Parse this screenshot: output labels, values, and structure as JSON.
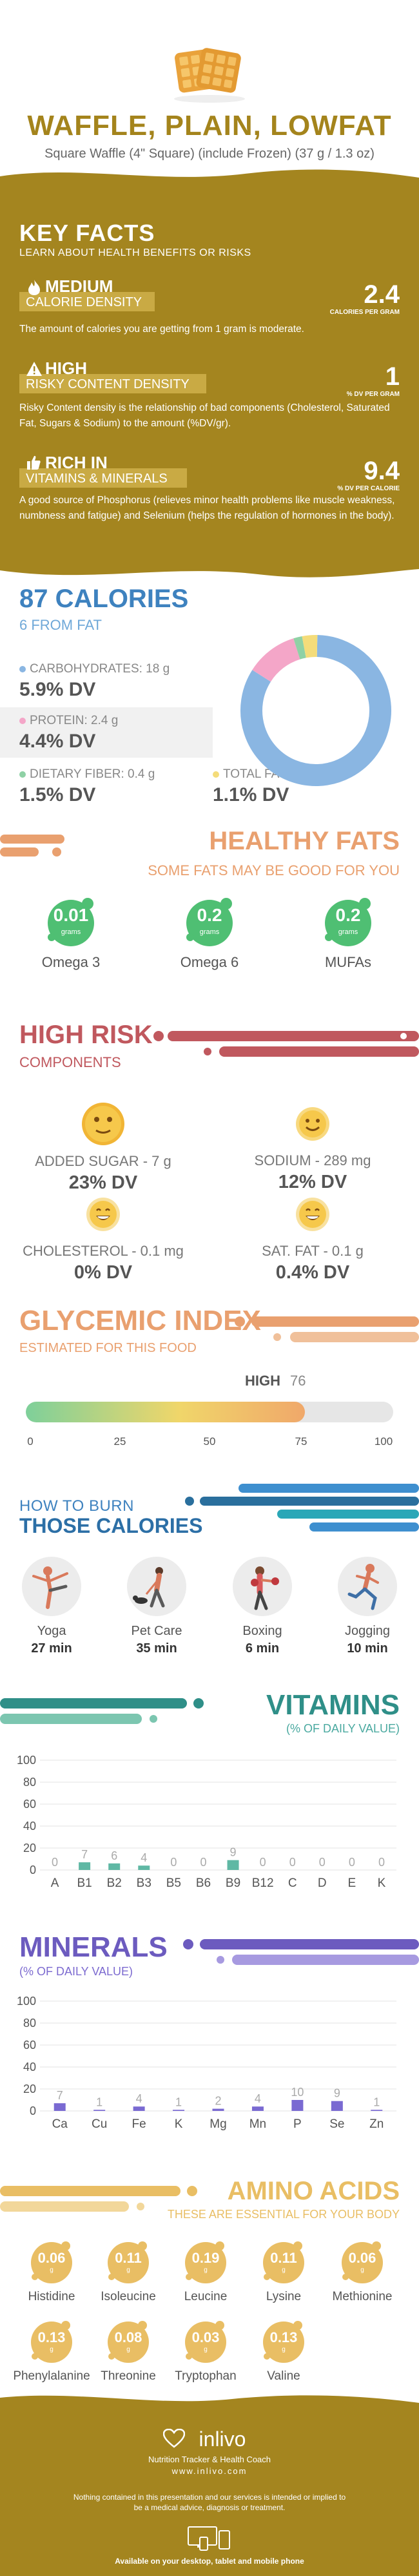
{
  "header": {
    "title": "WAFFLE, PLAIN, LOWFAT",
    "subtitle": "Square Waffle (4\" Square) (include Frozen) (37 g / 1.3 oz)",
    "image_icon": "waffle-image"
  },
  "key_facts": {
    "heading": "KEY FACTS",
    "subheading": "LEARN ABOUT HEALTH BENEFITS OR RISKS",
    "items": [
      {
        "level": "MEDIUM",
        "label": "CALORIE DENSITY",
        "value": "2.4",
        "unit": "CALORIES PER GRAM",
        "description": "The amount of calories you are getting from 1 gram is moderate.",
        "icon": "flame-icon"
      },
      {
        "level": "HIGH",
        "label": "RISKY CONTENT DENSITY",
        "value": "1",
        "unit": "% DV PER GRAM",
        "description": "Risky Content density is the relationship of bad components (Cholesterol, Saturated Fat, Sugars & Sodium) to the amount (%DV/gr).",
        "icon": "warning-icon"
      },
      {
        "level": "RICH  IN",
        "label": "VITAMINS & MINERALS",
        "value": "9.4",
        "unit": "% DV PER CALORIE",
        "description": "A good source of Phosphorus (relieves minor health problems like muscle weakness, numbness and fatigue) and Selenium (helps the regulation of hormones in the body).",
        "icon": "thumbs-up-icon"
      }
    ]
  },
  "calories": {
    "title": "87 CALORIES",
    "from_fat": "6 FROM FAT",
    "cells": [
      {
        "label": "CARBOHYDRATES: 18 g",
        "dv": "5.9% DV",
        "color": "#8ab6e2"
      },
      {
        "label": "PROTEIN: 2.4 g",
        "dv": "4.4% DV",
        "color": "#f4a6c8"
      },
      {
        "label": "DIETARY FIBER: 0.4 g",
        "dv": "1.5% DV",
        "color": "#8fd1a5"
      },
      {
        "label": "TOTAL FAT: 0.7 g",
        "dv": "1.1% DV",
        "color": "#f4dc7a"
      }
    ],
    "donut": [
      {
        "name": "Carbohydrates",
        "value": 18,
        "color": "#8ab6e2"
      },
      {
        "name": "Protein",
        "value": 2.4,
        "color": "#f4a6c8"
      },
      {
        "name": "Dietary fiber",
        "value": 0.4,
        "color": "#8fd1a5"
      },
      {
        "name": "Total fat",
        "value": 0.7,
        "color": "#f4dc7a"
      }
    ]
  },
  "healthy_fats": {
    "title": "HEALTHY FATS",
    "subtitle": "SOME FATS MAY BE GOOD FOR YOU",
    "items": [
      {
        "value": "0.01",
        "unit": "grams",
        "name": "Omega 3"
      },
      {
        "value": "0.2",
        "unit": "grams",
        "name": "Omega 6"
      },
      {
        "value": "0.2",
        "unit": "grams",
        "name": "MUFAs"
      }
    ]
  },
  "high_risk": {
    "title": "HIGH RISK",
    "subtitle": "COMPONENTS",
    "items": [
      {
        "label": "ADDED SUGAR - 7 g",
        "dv": "23% DV",
        "face": "neutral-face-icon"
      },
      {
        "label": "SODIUM - 289 mg",
        "dv": "12% DV",
        "face": "smile-face-icon"
      },
      {
        "label": "CHOLESTEROL - 0.1 mg",
        "dv": "0% DV",
        "face": "grin-face-icon"
      },
      {
        "label": "SAT. FAT - 0.1 g",
        "dv": "0.4% DV",
        "face": "grin-face-icon"
      }
    ]
  },
  "glycemic": {
    "title": "GLYCEMIC INDEX",
    "subtitle": "ESTIMATED FOR THIS FOOD",
    "level": "HIGH",
    "value": "76",
    "value_num": 76,
    "ticks": [
      "0",
      "25",
      "50",
      "75",
      "100"
    ]
  },
  "burn": {
    "title_line1": "HOW TO BURN",
    "title_line2": "THOSE CALORIES",
    "activities": [
      {
        "name": "Yoga",
        "minutes": "27 min",
        "icon": "yoga-icon"
      },
      {
        "name": "Pet Care",
        "minutes": "35 min",
        "icon": "pet-care-icon"
      },
      {
        "name": "Boxing",
        "minutes": "6 min",
        "icon": "boxing-icon"
      },
      {
        "name": "Jogging",
        "minutes": "10 min",
        "icon": "jogging-icon"
      }
    ]
  },
  "vitamins": {
    "title": "VITAMINS",
    "subtitle": "(% OF DAILY VALUE)"
  },
  "minerals": {
    "title": "MINERALS",
    "subtitle": "(% OF DAILY VALUE)"
  },
  "chart_data": [
    {
      "type": "bar",
      "categories": [
        "A",
        "B1",
        "B2",
        "B3",
        "B5",
        "B6",
        "B9",
        "B12",
        "C",
        "D",
        "E",
        "K"
      ],
      "values": [
        0,
        7,
        6,
        4,
        0,
        0,
        9,
        0,
        0,
        0,
        0,
        0
      ],
      "data_labels": [
        "0",
        "7",
        "6",
        "4",
        "0",
        "0",
        "9",
        "0",
        "0",
        "0",
        "0",
        "0"
      ],
      "yticks": [
        "100",
        "80",
        "60",
        "40",
        "20",
        "0"
      ],
      "ylim": [
        0,
        100
      ],
      "grid": true,
      "bar_color": "#5fb8a4"
    },
    {
      "type": "bar",
      "categories": [
        "Ca",
        "Cu",
        "Fe",
        "K",
        "Mg",
        "Mn",
        "P",
        "Se",
        "Zn"
      ],
      "values": [
        7,
        1,
        4,
        1,
        2,
        4,
        10,
        9,
        1
      ],
      "data_labels": [
        "7",
        "1",
        "4",
        "1",
        "2",
        "4",
        "10",
        "9",
        "1"
      ],
      "yticks": [
        "100",
        "80",
        "60",
        "40",
        "20",
        "0"
      ],
      "ylim": [
        0,
        100
      ],
      "grid": true,
      "bar_color": "#7a6ad2"
    }
  ],
  "amino_acids": {
    "title": "AMINO ACIDS",
    "subtitle": "THESE ARE ESSENTIAL FOR YOUR BODY",
    "items": [
      {
        "value": "0.06",
        "unit": "g",
        "name": "Histidine"
      },
      {
        "value": "0.11",
        "unit": "g",
        "name": "Isoleucine"
      },
      {
        "value": "0.19",
        "unit": "g",
        "name": "Leucine"
      },
      {
        "value": "0.11",
        "unit": "g",
        "name": "Lysine"
      },
      {
        "value": "0.06",
        "unit": "g",
        "name": "Methionine"
      },
      {
        "value": "0.13",
        "unit": "g",
        "name": "Phenylalanine"
      },
      {
        "value": "0.08",
        "unit": "g",
        "name": "Threonine"
      },
      {
        "value": "0.03",
        "unit": "g",
        "name": "Tryptophan"
      },
      {
        "value": "0.13",
        "unit": "g",
        "name": "Valine"
      }
    ]
  },
  "footer": {
    "brand": "inlivo",
    "tagline": "Nutrition Tracker & Health Coach",
    "url": "www.inlivo.com",
    "disclaimer": "Nothing contained in this presentation and our services is intended or implied to be a medical advice, diagnosis or treatment.",
    "available": "Available on your desktop, tablet and mobile phone",
    "logo_icon": "heart-logo-icon",
    "devices_icon": "devices-icon"
  },
  "colors": {
    "gold": "#a4851f",
    "blue": "#3e82bf",
    "orange": "#e9a06f",
    "red": "#c0585e",
    "teal": "#2f8f88",
    "purple": "#6c5bbf",
    "yellow": "#e9be64"
  }
}
